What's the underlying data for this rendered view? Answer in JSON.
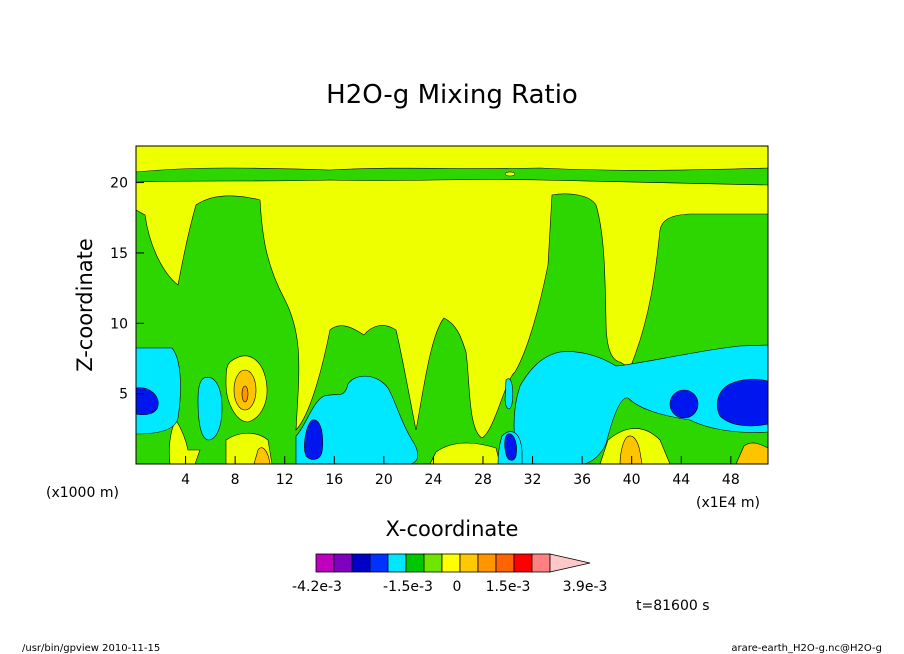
{
  "chart_data": {
    "type": "heatmap",
    "title": "H2O-g Mixing Ratio",
    "xlabel": "X-coordinate",
    "ylabel": "Z-coordinate",
    "x_unit_left": "(x1000 m)",
    "x_unit_right": "(x1E4 m)",
    "xlim": [
      0,
      51
    ],
    "ylim": [
      0,
      22.6
    ],
    "x_ticks": [
      4,
      8,
      12,
      16,
      20,
      24,
      28,
      32,
      36,
      40,
      44,
      48
    ],
    "y_ticks": [
      5,
      10,
      15,
      20
    ],
    "time_label": "t=81600 s",
    "colorbar": {
      "colors": [
        "#bf00bf",
        "#8000c0",
        "#0000c8",
        "#0032ff",
        "#00e6ff",
        "#00c800",
        "#6ee600",
        "#ffff00",
        "#ffc800",
        "#ff9600",
        "#ff6400",
        "#ff0000",
        "#ff8080",
        "#ffc8c8"
      ],
      "tick_labels": [
        "-4.2e-3",
        "-1.5e-3",
        "0",
        "1.5e-3",
        "3.9e-3"
      ]
    },
    "regions": [
      {
        "level": "yellow",
        "note": "upper-middle region"
      },
      {
        "level": "green",
        "note": "wide band"
      },
      {
        "level": "cyan",
        "note": "lower regions"
      },
      {
        "level": "blue",
        "note": "small cores"
      }
    ]
  },
  "footer": {
    "left": "/usr/bin/gpview   2010-11-15",
    "right": "arare-earth_H2O-g.nc@H2O-g"
  },
  "colors": {
    "yellow": "#eeff00",
    "green": "#2ed600",
    "cyan": "#00e8ff",
    "blue": "#0016ee",
    "orange": "#ffc400"
  }
}
